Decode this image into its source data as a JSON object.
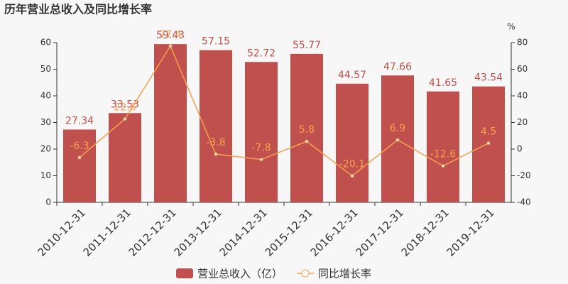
{
  "chart_data": {
    "type": "bar",
    "title": "历年营业总收入及同比增长率",
    "categories": [
      "2010-12-31",
      "2011-12-31",
      "2012-12-31",
      "2013-12-31",
      "2014-12-31",
      "2015-12-31",
      "2016-12-31",
      "2017-12-31",
      "2018-12-31",
      "2019-12-31"
    ],
    "series": [
      {
        "name": "营业总收入（亿）",
        "type": "bar",
        "color": "#c0504d",
        "values": [
          27.34,
          33.53,
          59.43,
          57.15,
          52.72,
          55.77,
          44.57,
          47.66,
          41.65,
          43.54
        ]
      },
      {
        "name": "同比增长率",
        "type": "line",
        "axis": "y2",
        "color": "#f5a04f",
        "values": [
          -6.3,
          22.6,
          77.4,
          -3.8,
          -7.8,
          5.8,
          -20.1,
          6.9,
          -12.6,
          4.5
        ]
      }
    ],
    "ylim": [
      0,
      60
    ],
    "yticks": [
      0,
      10,
      20,
      30,
      40,
      50,
      60
    ],
    "y2lim": [
      -40,
      80
    ],
    "y2ticks": [
      -40,
      -20,
      0,
      20,
      40,
      60,
      80
    ],
    "y2_label": "%",
    "legend": "bottom"
  }
}
